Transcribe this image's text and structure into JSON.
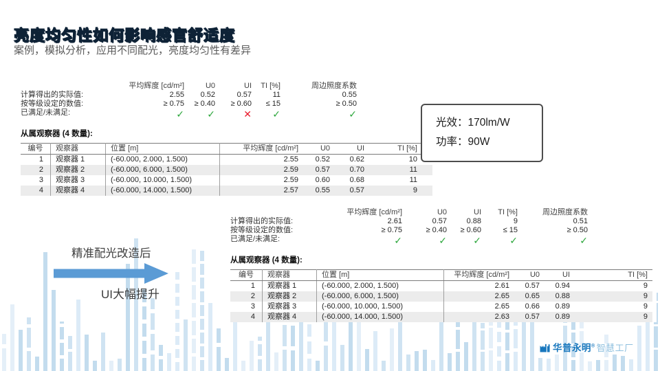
{
  "slide": {
    "title": "亮度均匀性如何影响感官舒适度",
    "subtitle": "案例，模拟分析，应用不同配光，亮度均匀性有差异"
  },
  "colors": {
    "title_blue": "#1e78ad",
    "title_outline": "#0e2236",
    "check_green": "#2aa63a",
    "cross_red": "#e91a2b",
    "arrow_blue": "#5b9bd5",
    "logo_blue": "#1877bd",
    "logo_light_blue": "#8fc0df",
    "bar_light_blue": "#cfe3f2"
  },
  "report_before": {
    "summary": {
      "columns": [
        "平均辉度 [cd/m²]",
        "U0",
        "UI",
        "TI [%]",
        "周边照度系数"
      ],
      "actual_label": "计算得出的实际值:",
      "actual": [
        "2.55",
        "0.52",
        "0.57",
        "11",
        "0.55"
      ],
      "required_label": "按等级设定的数值:",
      "required": [
        "≥ 0.75",
        "≥ 0.40",
        "≥ 0.60",
        "≤ 15",
        "≥ 0.50"
      ],
      "fulfilled_label": "已满足/未满足:",
      "fulfilled": [
        "check",
        "check",
        "cross",
        "check",
        "check"
      ]
    },
    "observers_title": "从属观察器 (4 数量):",
    "table": {
      "headers": [
        "编号",
        "观察器",
        "位置 [m]",
        "平均辉度 [cd/m²]",
        "U0",
        "UI",
        "TI [%]"
      ],
      "rows": [
        [
          "1",
          "观察器 1",
          "(-60.000, 2.000, 1.500)",
          "2.55",
          "0.52",
          "0.62",
          "10"
        ],
        [
          "2",
          "观察器 2",
          "(-60.000, 6.000, 1.500)",
          "2.59",
          "0.57",
          "0.70",
          "11"
        ],
        [
          "3",
          "观察器 3",
          "(-60.000, 10.000, 1.500)",
          "2.59",
          "0.60",
          "0.68",
          "11"
        ],
        [
          "4",
          "观察器 4",
          "(-60.000, 14.000, 1.500)",
          "2.57",
          "0.55",
          "0.57",
          "9"
        ]
      ]
    }
  },
  "report_after": {
    "summary": {
      "columns": [
        "平均辉度 [cd/m²]",
        "U0",
        "UI",
        "TI [%]",
        "周边照度系数"
      ],
      "actual_label": "计算得出的实际值:",
      "actual": [
        "2.61",
        "0.57",
        "0.88",
        "9",
        "0.51"
      ],
      "required_label": "按等级设定的数值:",
      "required": [
        "≥ 0.75",
        "≥ 0.40",
        "≥ 0.60",
        "≤ 15",
        "≥ 0.50"
      ],
      "fulfilled_label": "已满足/未满足:",
      "fulfilled": [
        "check",
        "check",
        "check",
        "check",
        "check"
      ]
    },
    "observers_title": "从属观察器 (4 数量):",
    "table": {
      "headers": [
        "编号",
        "观察器",
        "位置 [m]",
        "平均辉度 [cd/m²]",
        "U0",
        "UI",
        "TI [%]"
      ],
      "rows": [
        [
          "1",
          "观察器 1",
          "(-60.000, 2.000, 1.500)",
          "2.61",
          "0.57",
          "0.94",
          "9"
        ],
        [
          "2",
          "观察器 2",
          "(-60.000, 6.000, 1.500)",
          "2.65",
          "0.65",
          "0.88",
          "9"
        ],
        [
          "3",
          "观察器 3",
          "(-60.000, 10.000, 1.500)",
          "2.65",
          "0.66",
          "0.89",
          "9"
        ],
        [
          "4",
          "观察器 4",
          "(-60.000, 14.000, 1.500)",
          "2.63",
          "0.57",
          "0.89",
          "9"
        ]
      ]
    }
  },
  "spec_box": {
    "efficacy": "光效：170lm/W",
    "power": "功率：90W"
  },
  "annotation": {
    "line_top": "精准配光改造后",
    "line_bottom": "UI大幅提升"
  },
  "logo": {
    "brand": "华普永明",
    "reg": "®",
    "suffix": "智慧工厂"
  }
}
